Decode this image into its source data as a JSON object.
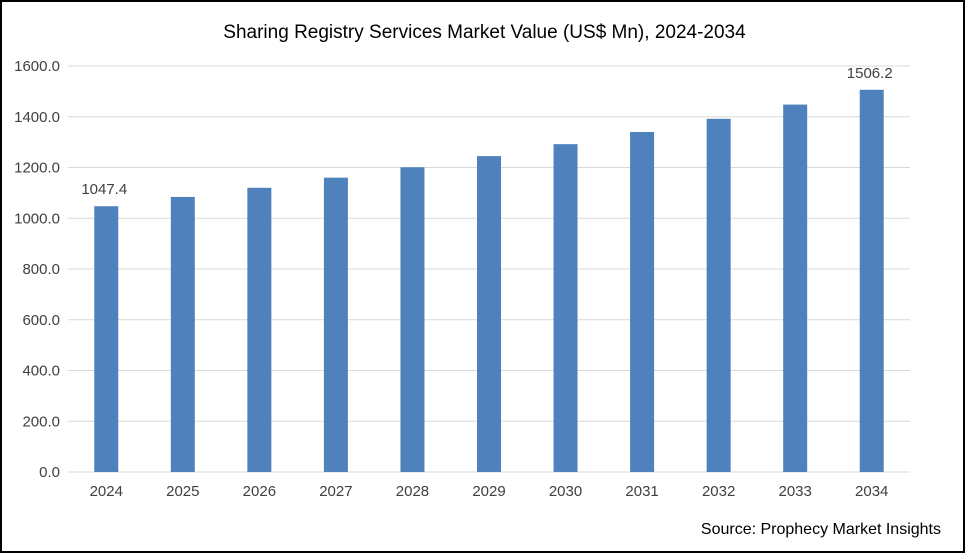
{
  "chart_data": {
    "type": "bar",
    "title": "Sharing Registry Services Market Value (US$ Mn), 2024-2034",
    "xlabel": "",
    "ylabel": "",
    "categories": [
      "2024",
      "2025",
      "2026",
      "2027",
      "2028",
      "2029",
      "2030",
      "2031",
      "2032",
      "2033",
      "2034"
    ],
    "values": [
      1047.4,
      1084,
      1120,
      1160,
      1201,
      1245,
      1292,
      1340,
      1392,
      1448,
      1506.2
    ],
    "data_labels": [
      {
        "index": 0,
        "text": "1047.4"
      },
      {
        "index": 10,
        "text": "1506.2"
      }
    ],
    "ylim": [
      0,
      1600
    ],
    "yticks": [
      "0.0",
      "200.0",
      "400.0",
      "600.0",
      "800.0",
      "1000.0",
      "1200.0",
      "1400.0",
      "1600.0"
    ],
    "grid": true,
    "legend": "none",
    "bar_color": "#4F81BD",
    "grid_color": "#D9D9D9"
  },
  "source_text": "Source: Prophecy Market Insights"
}
